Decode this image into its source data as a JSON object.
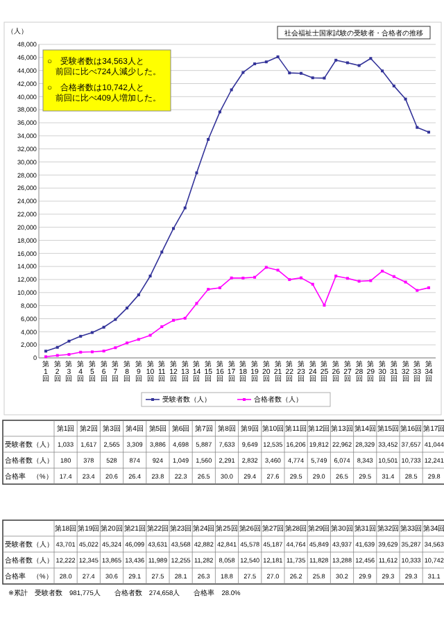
{
  "chart_data": [
    {
      "type": "line",
      "title": "社会福祉士国家試験の受験者・合格者の推移",
      "ylabel": "（人）",
      "categories": [
        "第1回",
        "第2回",
        "第3回",
        "第4回",
        "第5回",
        "第6回",
        "第7回",
        "第8回",
        "第9回",
        "第10回",
        "第11回",
        "第12回",
        "第13回",
        "第14回",
        "第15回",
        "第16回",
        "第17回",
        "第18回",
        "第19回",
        "第20回",
        "第21回",
        "第22回",
        "第23回",
        "第24回",
        "第25回",
        "第26回",
        "第27回",
        "第28回",
        "第29回",
        "第30回",
        "第31回",
        "第32回",
        "第33回",
        "第34回"
      ],
      "series": [
        {
          "name": "受験者数（人）",
          "color": "#333399",
          "values": [
            1033,
            1617,
            2565,
            3309,
            3886,
            4698,
            5887,
            7633,
            9649,
            12535,
            16206,
            19812,
            22962,
            28329,
            33452,
            37657,
            41044,
            43701,
            45022,
            45324,
            46099,
            43631,
            43568,
            42882,
            42841,
            45578,
            45187,
            44764,
            45849,
            43937,
            41639,
            39629,
            35287,
            34563
          ]
        },
        {
          "name": "合格者数（人）",
          "color": "#ff00ff",
          "values": [
            180,
            378,
            528,
            874,
            924,
            1049,
            1560,
            2291,
            2832,
            3460,
            4774,
            5749,
            6074,
            8343,
            10501,
            10733,
            12241,
            12222,
            12345,
            13865,
            13436,
            11989,
            12255,
            11282,
            8058,
            12540,
            12181,
            11735,
            11828,
            13288,
            12456,
            11612,
            10333,
            10742
          ]
        }
      ],
      "ylim": [
        0,
        48000
      ],
      "yticks": [
        {
          "value": 0,
          "label": "0"
        },
        {
          "value": 2000,
          "label": "2,000"
        },
        {
          "value": 4000,
          "label": "4,000"
        },
        {
          "value": 6000,
          "label": "6,000"
        },
        {
          "value": 8000,
          "label": "8,000"
        },
        {
          "value": 10000,
          "label": "10,000"
        },
        {
          "value": 12000,
          "label": "12,000"
        },
        {
          "value": 14000,
          "label": "14,000"
        },
        {
          "value": 16000,
          "label": "16,000"
        },
        {
          "value": 18000,
          "label": "18,000"
        },
        {
          "value": 20000,
          "label": "20,000"
        },
        {
          "value": 22000,
          "label": "22,000"
        },
        {
          "value": 24000,
          "label": "24,000"
        },
        {
          "value": 26000,
          "label": "26,000"
        },
        {
          "value": 28000,
          "label": "28,000"
        },
        {
          "value": 30000,
          "label": "30,000"
        },
        {
          "value": 32000,
          "label": "32,000"
        },
        {
          "value": 34000,
          "label": "34,000"
        },
        {
          "value": 36000,
          "label": "36,000"
        },
        {
          "value": 38000,
          "label": "38,000"
        },
        {
          "value": 40000,
          "label": "40,000"
        },
        {
          "value": 42000,
          "label": "42,000"
        },
        {
          "value": 44000,
          "label": "44,000"
        },
        {
          "value": 46000,
          "label": "46,000"
        },
        {
          "value": 48000,
          "label": "48,000"
        }
      ],
      "grid": "y",
      "legend": "bottom",
      "marker": "square",
      "annotations": [
        "○　受験者数は34,563人と前回に比べ724人減少した。",
        "○　合格者数は10,742人と前回に比べ409人増加した。"
      ]
    },
    {
      "type": "other",
      "categories": [
        "第1回",
        "第2回",
        "第3回",
        "第4回",
        "第5回",
        "第6回",
        "第7回",
        "第8回",
        "第9回",
        "第10回",
        "第11回",
        "第12回",
        "第13回",
        "第14回",
        "第15回",
        "第16回",
        "第17回",
        "第18回",
        "第19回",
        "第20回",
        "第21回",
        "第22回",
        "第23回",
        "第24回",
        "第25回",
        "第26回",
        "第27回",
        "第28回",
        "第29回",
        "第30回",
        "第31回",
        "第32回",
        "第33回",
        "第34回"
      ],
      "series": [
        {
          "name": "受験者数（人）",
          "values": [
            1033,
            1617,
            2565,
            3309,
            3886,
            4698,
            5887,
            7633,
            9649,
            12535,
            16206,
            19812,
            22962,
            28329,
            33452,
            37657,
            41044,
            43701,
            45022,
            45324,
            46099,
            43631,
            43568,
            42882,
            42841,
            45578,
            45187,
            44764,
            45849,
            43937,
            41639,
            39629,
            35287,
            34563
          ],
          "value_labels": [
            "1,033",
            "1,617",
            "2,565",
            "3,309",
            "3,886",
            "4,698",
            "5,887",
            "7,633",
            "9,649",
            "12,535",
            "16,206",
            "19,812",
            "22,962",
            "28,329",
            "33,452",
            "37,657",
            "41,044",
            "43,701",
            "45,022",
            "45,324",
            "46,099",
            "43,631",
            "43,568",
            "42,882",
            "42,841",
            "45,578",
            "45,187",
            "44,764",
            "45,849",
            "43,937",
            "41,639",
            "39,629",
            "35,287",
            "34,563"
          ]
        },
        {
          "name": "合格者数（人）",
          "values": [
            180,
            378,
            528,
            874,
            924,
            1049,
            1560,
            2291,
            2832,
            3460,
            4774,
            5749,
            6074,
            8343,
            10501,
            10733,
            12241,
            12222,
            12345,
            13865,
            13436,
            11989,
            12255,
            11282,
            8058,
            12540,
            12181,
            11735,
            11828,
            13288,
            12456,
            11612,
            10333,
            10742
          ],
          "value_labels": [
            "180",
            "378",
            "528",
            "874",
            "924",
            "1,049",
            "1,560",
            "2,291",
            "2,832",
            "3,460",
            "4,774",
            "5,749",
            "6,074",
            "8,343",
            "10,501",
            "10,733",
            "12,241",
            "12,222",
            "12,345",
            "13,865",
            "13,436",
            "11,989",
            "12,255",
            "11,282",
            "8,058",
            "12,540",
            "12,181",
            "11,735",
            "11,828",
            "13,288",
            "12,456",
            "11,612",
            "10,333",
            "10,742"
          ]
        },
        {
          "name": "合格率　（%）",
          "values": [
            17.4,
            23.4,
            20.6,
            26.4,
            23.8,
            22.3,
            26.5,
            30.0,
            29.4,
            27.6,
            29.5,
            29.0,
            26.5,
            29.5,
            31.4,
            28.5,
            29.8,
            28.0,
            27.4,
            30.6,
            29.1,
            27.5,
            28.1,
            26.3,
            18.8,
            27.5,
            27.0,
            26.2,
            25.8,
            30.2,
            29.9,
            29.3,
            29.3,
            31.1
          ],
          "value_labels": [
            "17.4",
            "23.4",
            "20.6",
            "26.4",
            "23.8",
            "22.3",
            "26.5",
            "30.0",
            "29.4",
            "27.6",
            "29.5",
            "29.0",
            "26.5",
            "29.5",
            "31.4",
            "28.5",
            "29.8",
            "28.0",
            "27.4",
            "30.6",
            "29.1",
            "27.5",
            "28.1",
            "26.3",
            "18.8",
            "27.5",
            "27.0",
            "26.2",
            "25.8",
            "30.2",
            "29.9",
            "29.3",
            "29.3",
            "31.1"
          ]
        }
      ],
      "data_labels": true,
      "annotations": [
        "※累計　受験者数　981,775人　　合格者数　274,658人　　合格率　28.0%"
      ]
    }
  ]
}
